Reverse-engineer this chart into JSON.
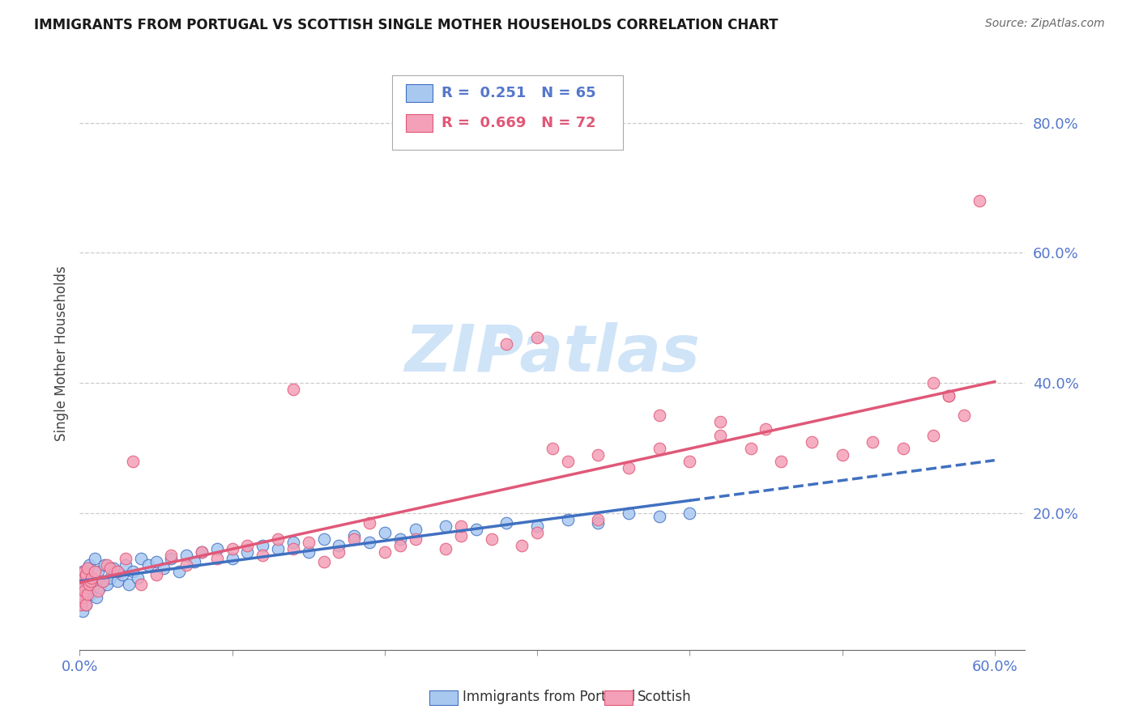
{
  "title": "IMMIGRANTS FROM PORTUGAL VS SCOTTISH SINGLE MOTHER HOUSEHOLDS CORRELATION CHART",
  "source": "Source: ZipAtlas.com",
  "ylabel": "Single Mother Households",
  "xlim": [
    0.0,
    0.62
  ],
  "ylim": [
    -0.01,
    0.9
  ],
  "blue_color": "#A8C8F0",
  "pink_color": "#F4A0B8",
  "blue_line_color": "#4070C0",
  "pink_line_color": "#E05878",
  "tick_color": "#5577CC",
  "watermark_color": "#D0E4F8",
  "portugal_x": [
    0.001,
    0.001,
    0.001,
    0.002,
    0.002,
    0.002,
    0.003,
    0.003,
    0.004,
    0.004,
    0.005,
    0.005,
    0.006,
    0.006,
    0.007,
    0.008,
    0.009,
    0.01,
    0.01,
    0.011,
    0.012,
    0.013,
    0.015,
    0.016,
    0.018,
    0.02,
    0.022,
    0.025,
    0.028,
    0.03,
    0.032,
    0.035,
    0.038,
    0.04,
    0.045,
    0.05,
    0.055,
    0.06,
    0.065,
    0.07,
    0.075,
    0.08,
    0.09,
    0.1,
    0.11,
    0.12,
    0.13,
    0.14,
    0.15,
    0.16,
    0.17,
    0.18,
    0.19,
    0.2,
    0.21,
    0.22,
    0.24,
    0.26,
    0.28,
    0.3,
    0.32,
    0.34,
    0.36,
    0.38,
    0.4
  ],
  "portugal_y": [
    0.06,
    0.08,
    0.1,
    0.05,
    0.09,
    0.11,
    0.07,
    0.095,
    0.06,
    0.105,
    0.08,
    0.115,
    0.09,
    0.12,
    0.075,
    0.1,
    0.085,
    0.095,
    0.13,
    0.07,
    0.11,
    0.085,
    0.095,
    0.12,
    0.09,
    0.1,
    0.115,
    0.095,
    0.105,
    0.12,
    0.09,
    0.11,
    0.1,
    0.13,
    0.12,
    0.125,
    0.115,
    0.13,
    0.11,
    0.135,
    0.125,
    0.14,
    0.145,
    0.13,
    0.14,
    0.15,
    0.145,
    0.155,
    0.14,
    0.16,
    0.15,
    0.165,
    0.155,
    0.17,
    0.16,
    0.175,
    0.18,
    0.175,
    0.185,
    0.18,
    0.19,
    0.185,
    0.2,
    0.195,
    0.2
  ],
  "scottish_x": [
    0.001,
    0.001,
    0.002,
    0.002,
    0.003,
    0.003,
    0.004,
    0.004,
    0.005,
    0.005,
    0.006,
    0.007,
    0.008,
    0.01,
    0.012,
    0.015,
    0.018,
    0.02,
    0.025,
    0.03,
    0.035,
    0.04,
    0.05,
    0.06,
    0.07,
    0.08,
    0.09,
    0.1,
    0.11,
    0.12,
    0.13,
    0.14,
    0.15,
    0.16,
    0.17,
    0.18,
    0.2,
    0.21,
    0.22,
    0.24,
    0.25,
    0.27,
    0.29,
    0.3,
    0.32,
    0.34,
    0.36,
    0.38,
    0.4,
    0.42,
    0.44,
    0.46,
    0.48,
    0.5,
    0.52,
    0.54,
    0.56,
    0.57,
    0.58,
    0.59,
    0.56,
    0.57,
    0.3,
    0.28,
    0.42,
    0.14,
    0.25,
    0.34,
    0.19,
    0.45,
    0.38,
    0.31
  ],
  "scottish_y": [
    0.06,
    0.09,
    0.07,
    0.1,
    0.08,
    0.11,
    0.06,
    0.105,
    0.075,
    0.115,
    0.09,
    0.095,
    0.1,
    0.11,
    0.08,
    0.095,
    0.12,
    0.115,
    0.11,
    0.13,
    0.28,
    0.09,
    0.105,
    0.135,
    0.12,
    0.14,
    0.13,
    0.145,
    0.15,
    0.135,
    0.16,
    0.145,
    0.155,
    0.125,
    0.14,
    0.16,
    0.14,
    0.15,
    0.16,
    0.145,
    0.165,
    0.16,
    0.15,
    0.17,
    0.28,
    0.29,
    0.27,
    0.3,
    0.28,
    0.32,
    0.3,
    0.28,
    0.31,
    0.29,
    0.31,
    0.3,
    0.32,
    0.38,
    0.35,
    0.68,
    0.4,
    0.38,
    0.47,
    0.46,
    0.34,
    0.39,
    0.18,
    0.19,
    0.185,
    0.33,
    0.35,
    0.3
  ]
}
